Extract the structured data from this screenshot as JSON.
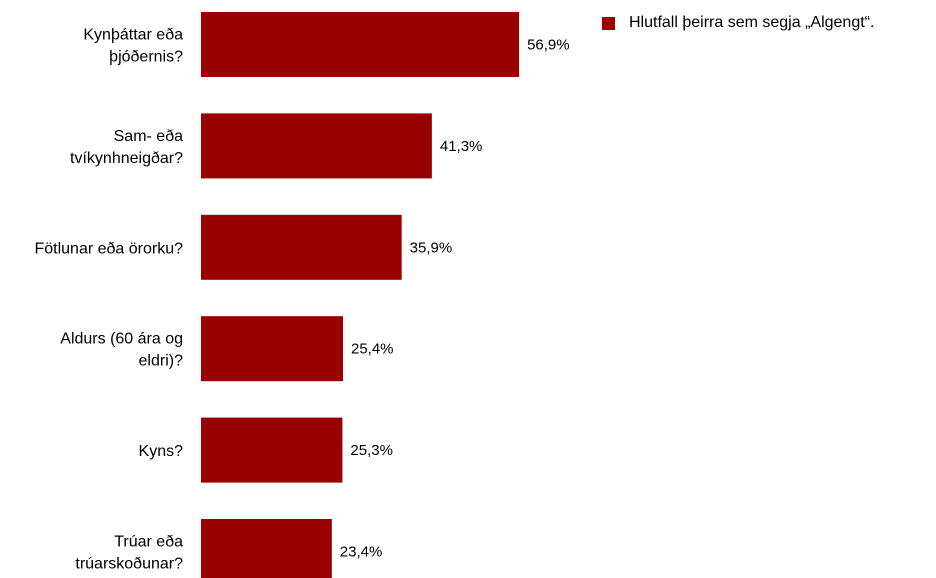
{
  "chart_data": {
    "type": "bar",
    "orientation": "horizontal",
    "categories": [
      [
        "Kynþáttar eða",
        "þjóðernis?"
      ],
      [
        "Sam- eða",
        "tvíkynhneigðar?"
      ],
      [
        "Fötlunar eða örorku?"
      ],
      [
        "Aldurs (60 ára og",
        "eldri)?"
      ],
      [
        "Kyns?"
      ],
      [
        "Trúar eða",
        "trúarskoðunar?"
      ]
    ],
    "series": [
      {
        "name": "Hlutfall þeirra sem segja „Algengt“.",
        "values": [
          56.9,
          41.3,
          35.9,
          25.4,
          25.3,
          23.4
        ],
        "value_labels": [
          "56,9%",
          "41,3%",
          "35,9%",
          "25,4%",
          "25,3%",
          "23,4%"
        ],
        "color": "#990000"
      }
    ],
    "xlim": [
      0,
      100
    ],
    "grid": false,
    "legend_position": "top-right"
  }
}
